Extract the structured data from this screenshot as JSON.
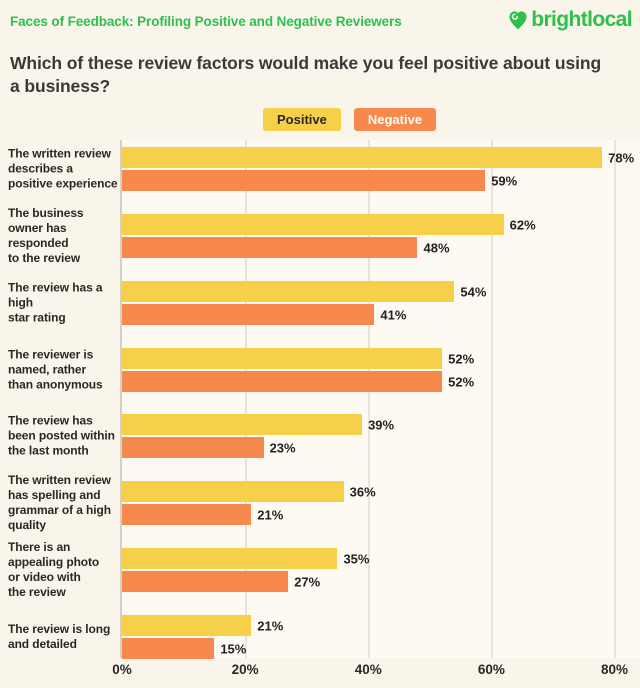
{
  "header": {
    "title": "Faces of Feedback: Profiling Positive and Negative Reviewers",
    "brand_name": "brightlocal"
  },
  "question": "Which of these review factors would make you feel positive about using a business?",
  "legend": [
    {
      "label": "Positive",
      "color": "#F6D049",
      "text_color": "#2A2725"
    },
    {
      "label": "Negative",
      "color": "#F6894B",
      "text_color": "#FEFCF5"
    }
  ],
  "colors": {
    "background": "#F9F5EB",
    "plot_panel": "#FCFAF3",
    "brand_green": "#2BC14B",
    "positive_bar": "#F6D049",
    "negative_bar": "#F6894B",
    "text_dark": "#2A2725"
  },
  "chart_data": {
    "type": "bar",
    "orientation": "horizontal",
    "title": "Which of these review factors would make you feel positive about using a business?",
    "categories": [
      "The written review\ndescribes a\npositive experience",
      "The business\nowner has\nresponded\nto the review",
      "The review has a\nhigh\nstar rating",
      "The reviewer is\nnamed, rather\nthan anonymous",
      "The review has\nbeen posted within\nthe last month",
      "The written review\nhas spelling and\ngrammar of a high\nquality",
      "There is an\nappealing photo\nor video with\nthe review",
      "The review is long\nand detailed"
    ],
    "series": [
      {
        "name": "Positive",
        "color": "#F6D049",
        "values": [
          78,
          62,
          54,
          52,
          39,
          36,
          35,
          21
        ]
      },
      {
        "name": "Negative",
        "color": "#F6894B",
        "values": [
          59,
          48,
          41,
          52,
          23,
          21,
          27,
          15
        ]
      }
    ],
    "value_suffix": "%",
    "x_axis": {
      "min": 0,
      "max": 80,
      "tick_values": [
        0,
        20,
        40,
        60,
        80
      ],
      "tick_labels": [
        "0%",
        "20%",
        "40%",
        "60%",
        "80%"
      ]
    },
    "grid": true,
    "legend_position": "top"
  }
}
